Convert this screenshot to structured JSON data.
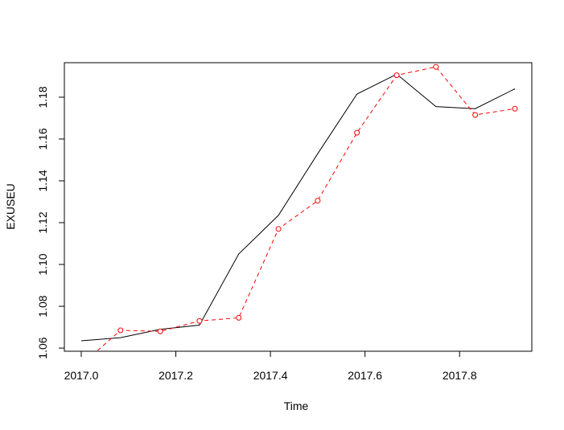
{
  "chart_data": {
    "type": "line",
    "xlabel": "Time",
    "ylabel": "EXUSEU",
    "xlim": [
      2017.0,
      2017.917
    ],
    "ylim": [
      1.0585,
      1.1965
    ],
    "x_ticks": [
      "2017.0",
      "2017.2",
      "2017.4",
      "2017.6",
      "2017.8"
    ],
    "y_ticks": [
      "1.06",
      "1.08",
      "1.10",
      "1.12",
      "1.14",
      "1.16",
      "1.18"
    ],
    "grid": false,
    "legend": "none",
    "series": [
      {
        "color": "#000000",
        "style": "solid",
        "markers": false,
        "x": [
          2017.0,
          2017.083,
          2017.167,
          2017.25,
          2017.333,
          2017.417,
          2017.5,
          2017.583,
          2017.667,
          2017.75,
          2017.833,
          2017.917
        ],
        "y": [
          1.0635,
          1.065,
          1.069,
          1.071,
          1.105,
          1.1235,
          1.153,
          1.1815,
          1.191,
          1.1755,
          1.1745,
          1.184
        ]
      },
      {
        "color": "#ff0000",
        "style": "dashed",
        "markers": true,
        "x": [
          2017.0,
          2017.083,
          2017.167,
          2017.25,
          2017.333,
          2017.417,
          2017.5,
          2017.583,
          2017.667,
          2017.75,
          2017.833,
          2017.917
        ],
        "y": [
          1.052,
          1.0685,
          1.068,
          1.073,
          1.0745,
          1.117,
          1.1305,
          1.163,
          1.1905,
          1.1945,
          1.1715,
          1.1745
        ]
      }
    ]
  }
}
